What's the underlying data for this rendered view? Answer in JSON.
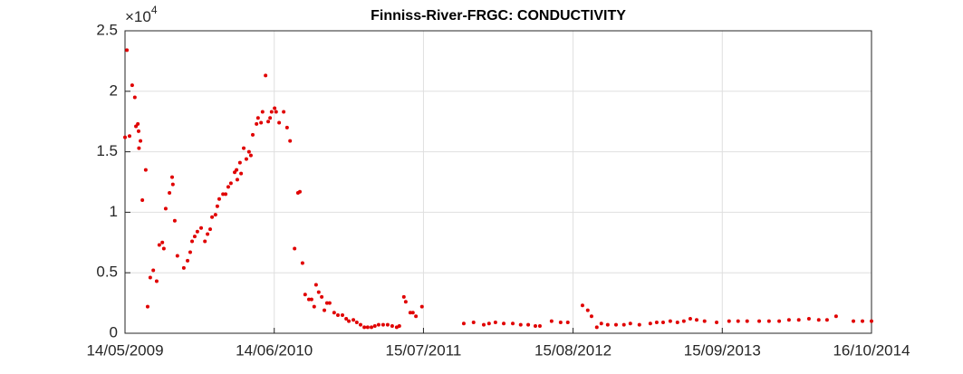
{
  "chart_data": {
    "type": "scatter",
    "title": "Finniss-River-FRGC: CONDUCTIVITY",
    "color": "#e00000",
    "grid": true,
    "y_multiplier": {
      "base": "×10",
      "exponent": "4"
    },
    "xlim": [
      "2009-05-14",
      "2014-10-16"
    ],
    "xticks": [
      {
        "value": "2009-05-14",
        "label": "14/05/2009"
      },
      {
        "value": "2010-06-14",
        "label": "14/06/2010"
      },
      {
        "value": "2011-07-15",
        "label": "15/07/2011"
      },
      {
        "value": "2012-08-15",
        "label": "15/08/2012"
      },
      {
        "value": "2013-09-15",
        "label": "15/09/2013"
      },
      {
        "value": "2014-10-16",
        "label": "16/10/2014"
      }
    ],
    "ylim": [
      0,
      25000
    ],
    "yticks": [
      0,
      {
        "value": 5000,
        "label": "0.5"
      },
      {
        "value": 10000,
        "label": "1"
      },
      {
        "value": 15000,
        "label": "1.5"
      },
      {
        "value": 20000,
        "label": "2"
      },
      {
        "value": 25000,
        "label": "2.5"
      }
    ],
    "x": [
      "2009-05-14",
      "2009-05-19",
      "2009-05-26",
      "2009-06-02",
      "2009-06-09",
      "2009-06-12",
      "2009-06-17",
      "2009-06-19",
      "2009-06-20",
      "2009-06-24",
      "2009-06-29",
      "2009-07-08",
      "2009-07-13",
      "2009-07-20",
      "2009-07-28",
      "2009-08-06",
      "2009-08-13",
      "2009-08-21",
      "2009-08-25",
      "2009-08-30",
      "2009-09-09",
      "2009-09-16",
      "2009-09-18",
      "2009-09-23",
      "2009-09-30",
      "2009-10-17",
      "2009-10-27",
      "2009-11-03",
      "2009-11-08",
      "2009-11-15",
      "2009-11-22",
      "2009-12-02",
      "2009-12-12",
      "2009-12-19",
      "2009-12-26",
      "2009-12-31",
      "2010-01-09",
      "2010-01-14",
      "2010-01-19",
      "2010-01-29",
      "2010-02-05",
      "2010-02-12",
      "2010-02-19",
      "2010-03-01",
      "2010-03-06",
      "2010-03-08",
      "2010-03-15",
      "2010-03-18",
      "2010-03-25",
      "2010-04-01",
      "2010-04-08",
      "2010-04-13",
      "2010-04-18",
      "2010-04-28",
      "2010-05-02",
      "2010-05-10",
      "2010-05-14",
      "2010-05-22",
      "2010-05-29",
      "2010-06-03",
      "2010-06-07",
      "2010-06-15",
      "2010-06-19",
      "2010-06-27",
      "2010-07-09",
      "2010-07-18",
      "2010-07-26",
      "2010-08-07",
      "2010-08-16",
      "2010-08-21",
      "2010-08-28",
      "2010-09-04",
      "2010-09-14",
      "2010-09-21",
      "2010-09-28",
      "2010-10-03",
      "2010-10-10",
      "2010-10-18",
      "2010-10-25",
      "2010-11-01",
      "2010-11-08",
      "2010-11-20",
      "2010-11-30",
      "2010-12-12",
      "2010-12-22",
      "2010-12-29",
      "2011-01-10",
      "2011-01-19",
      "2011-01-29",
      "2011-02-08",
      "2011-02-17",
      "2011-02-27",
      "2011-03-08",
      "2011-03-18",
      "2011-03-30",
      "2011-04-11",
      "2011-04-23",
      "2011-05-05",
      "2011-05-12",
      "2011-05-24",
      "2011-05-29",
      "2011-06-10",
      "2011-06-17",
      "2011-06-25",
      "2011-07-11",
      "2011-10-30",
      "2011-11-25",
      "2011-12-22",
      "2012-01-05",
      "2012-01-22",
      "2012-02-13",
      "2012-03-08",
      "2012-03-29",
      "2012-04-18",
      "2012-05-07",
      "2012-05-19",
      "2012-06-19",
      "2012-07-13",
      "2012-08-01",
      "2012-09-09",
      "2012-09-23",
      "2012-10-03",
      "2012-10-17",
      "2012-10-29",
      "2012-11-15",
      "2012-12-07",
      "2012-12-28",
      "2013-01-14",
      "2013-02-07",
      "2013-03-08",
      "2013-03-25",
      "2013-04-11",
      "2013-04-30",
      "2013-05-19",
      "2013-06-05",
      "2013-06-22",
      "2013-07-09",
      "2013-07-30",
      "2013-08-31",
      "2013-10-03",
      "2013-10-27",
      "2013-11-20",
      "2013-12-22",
      "2014-01-17",
      "2014-02-13",
      "2014-03-11",
      "2014-04-06",
      "2014-05-03",
      "2014-05-29",
      "2014-06-20",
      "2014-07-14",
      "2014-08-29",
      "2014-09-22",
      "2014-10-16"
    ],
    "values": [
      16200,
      23400,
      16300,
      20500,
      19500,
      17100,
      17300,
      16700,
      15300,
      15900,
      11000,
      13500,
      2200,
      4600,
      5200,
      4300,
      7300,
      7500,
      7000,
      10300,
      11600,
      12900,
      12300,
      9300,
      6400,
      5400,
      6000,
      6700,
      7600,
      8000,
      8400,
      8700,
      7600,
      8200,
      8600,
      9600,
      9800,
      10500,
      11100,
      11500,
      11500,
      12100,
      12400,
      13300,
      13500,
      12700,
      14100,
      13200,
      15300,
      14400,
      15000,
      14700,
      16400,
      17300,
      17800,
      17400,
      18300,
      21300,
      17500,
      17800,
      18300,
      18600,
      18300,
      17400,
      18300,
      17000,
      15900,
      7000,
      11600,
      11700,
      5800,
      3200,
      2800,
      2800,
      2200,
      4000,
      3400,
      3000,
      1900,
      2500,
      2500,
      1700,
      1500,
      1500,
      1200,
      1000,
      1100,
      900,
      700,
      500,
      500,
      500,
      600,
      700,
      700,
      700,
      600,
      500,
      600,
      3000,
      2600,
      1700,
      1700,
      1400,
      2200,
      800,
      900,
      700,
      800,
      900,
      800,
      800,
      700,
      700,
      600,
      600,
      1000,
      900,
      900,
      2300,
      1900,
      1400,
      500,
      800,
      700,
      700,
      700,
      800,
      700,
      800,
      900,
      900,
      1000,
      900,
      1000,
      1200,
      1100,
      1000,
      900,
      1000,
      1000,
      1000,
      1000,
      1000,
      1000,
      1100,
      1100,
      1200,
      1100,
      1100,
      1400,
      1000,
      1000,
      1000
    ]
  }
}
